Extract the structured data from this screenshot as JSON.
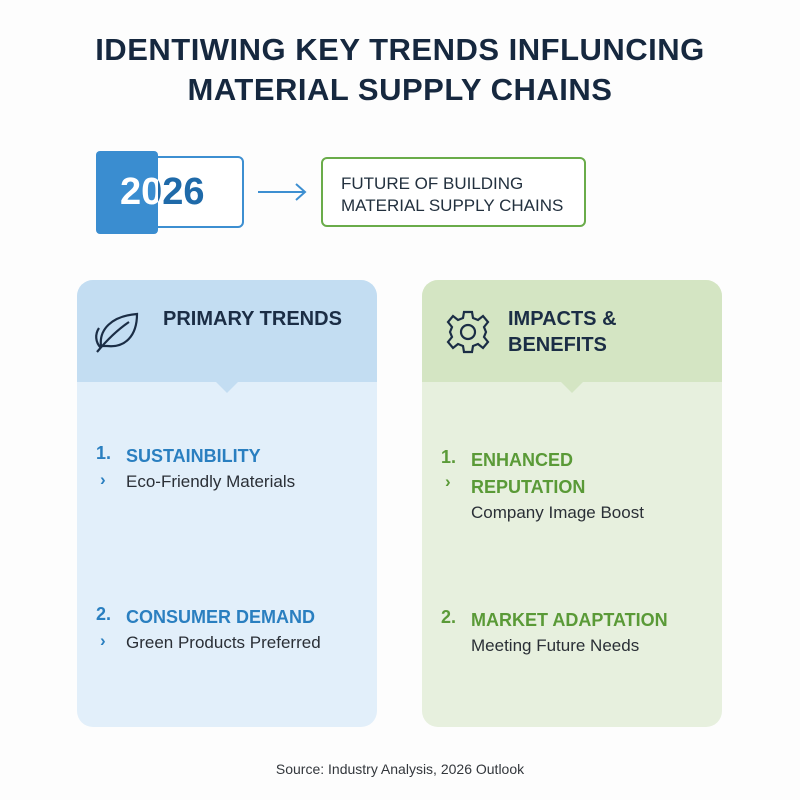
{
  "title": "IDENTIWING KEY TRENDS INFLUNCING MATERIAL SUPPLY CHAINS",
  "year": "2026",
  "target": "FUTURE OF BUILDING MATERIAL SUPPLY CHAINS",
  "panels": [
    {
      "heading": "PRIMARY TRENDS",
      "items": [
        {
          "number": "1.",
          "title": "SUSTAINBILITY",
          "detail": "Eco-Friendly Materials"
        },
        {
          "number": "2.",
          "title": "CONSUMER DEMAND",
          "detail": "Green Products Preferred"
        }
      ]
    },
    {
      "heading": "IMPACTS & BENEFITS",
      "items": [
        {
          "number": "1.",
          "title": "ENHANCED REPUTATION",
          "detail": "Company Image Boost"
        },
        {
          "number": "2.",
          "title": "MARKET ADAPTATION",
          "detail": "Meeting Future Needs"
        }
      ]
    }
  ],
  "source": "Source: Industry Analysis, 2026 Outlook"
}
